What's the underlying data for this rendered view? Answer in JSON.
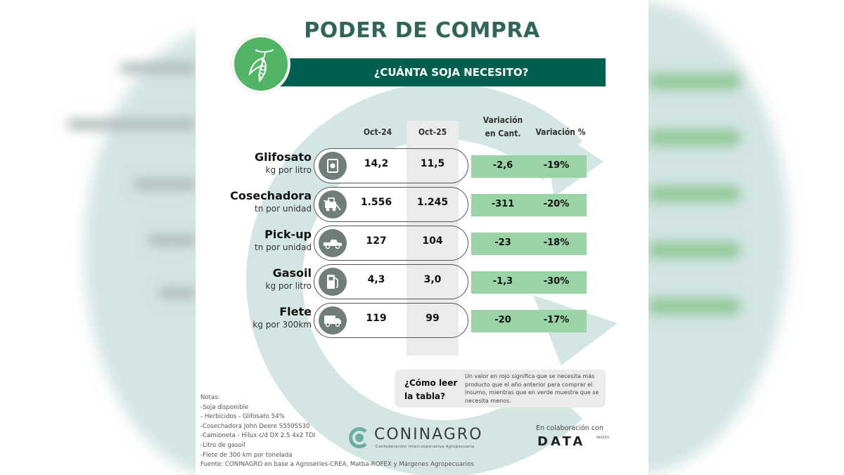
{
  "header": {
    "title": "PODER DE COMPRA",
    "subtitle": "¿CUÁNTA SOJA NECESITO?",
    "seal_icon": "soybean-pod-icon"
  },
  "table": {
    "columns": [
      "Oct-24",
      "Oct-25",
      "Variación en Cant.",
      "Variación %"
    ],
    "column_variation_cant_line1": "Variación",
    "column_variation_cant_line2": "en Cant.",
    "rows": [
      {
        "name": "Glifosato",
        "unit": "kg por litro",
        "icon": "herbicide-can-icon",
        "oct24": "14,2",
        "oct25": "11,5",
        "var_cant": "-2,6",
        "var_pct": "-19%"
      },
      {
        "name": "Cosechadora",
        "unit": "tn por unidad",
        "icon": "combine-harvester-icon",
        "oct24": "1.556",
        "oct25": "1.245",
        "var_cant": "-311",
        "var_pct": "-20%"
      },
      {
        "name": "Pick-up",
        "unit": "tn por unidad",
        "icon": "pickup-truck-icon",
        "oct24": "127",
        "oct25": "104",
        "var_cant": "-23",
        "var_pct": "-18%"
      },
      {
        "name": "Gasoil",
        "unit": "kg por litro",
        "icon": "fuel-pump-icon",
        "oct24": "4,3",
        "oct25": "3,0",
        "var_cant": "-1,3",
        "var_pct": "-30%"
      },
      {
        "name": "Flete",
        "unit": "kg por 300km",
        "icon": "delivery-truck-icon",
        "oct24": "119",
        "oct25": "99",
        "var_cant": "-20",
        "var_pct": "-17%"
      }
    ]
  },
  "how_to_read": {
    "question_line1": "¿Cómo leer",
    "question_line2": "la tabla?",
    "answer": "Un valor en rojo significa que se necesita más producto que el año anterior para comprar el insumo, mientras que en verde muestra que se necesita menos."
  },
  "notes": [
    "Notas:",
    "-Soja disponible",
    "- Herbicidos - Glifosato 54%",
    "-Cosechadora John Deere S550SS30",
    "-Camioneta - Hilux c/d DX 2.5 4x2 TDI",
    "-Litro de gasoil",
    "-Flete de 300 km por tonelada",
    "Fuente: CONINAGRO en base a Agroseries-CREA, Matba-ROFEX y Márgenes Agropecuarios"
  ],
  "footer": {
    "logo_name": "CONINAGRO",
    "logo_subtitle": "Confederación Intercooperativa Agropecuaria",
    "collab_label": "En colaboración con",
    "partner_name": "DATA",
    "partner_sup": "MIAZZO"
  },
  "colors": {
    "brand_dark_green": "#00604f",
    "title_green": "#2f6658",
    "seal_green": "#52b566",
    "variation_band": "#9ad3a6",
    "background_arc": "#d4e6e3",
    "icon_grey": "#6f7d7b"
  }
}
